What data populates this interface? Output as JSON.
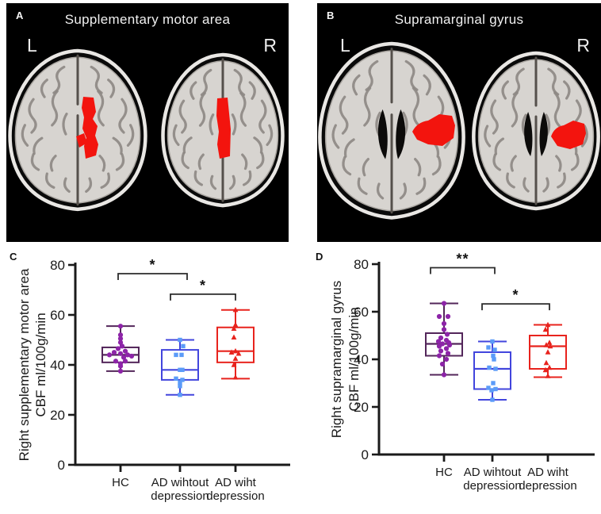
{
  "figure": {
    "panel_a": {
      "letter": "A",
      "title": "Supplementary motor area",
      "left_label": "L",
      "right_label": "R"
    },
    "panel_b": {
      "letter": "B",
      "title": "Supramarginal gyrus",
      "left_label": "L",
      "right_label": "R"
    },
    "panel_c": {
      "letter": "C"
    },
    "panel_d": {
      "letter": "D"
    }
  },
  "colors": {
    "panel_background": "#000000",
    "roi_highlight": "#f3140e",
    "hc_box": "#53265a",
    "hc_point": "#8d24a8",
    "ad_without_box": "#4245dd",
    "ad_without_point": "#5b9bf8",
    "ad_with_box": "#e8231d",
    "ad_with_point": "#e8231d",
    "axis": "#1a1a1a",
    "bracket": "#2b2b2b"
  },
  "chart_data": [
    {
      "panel": "C",
      "type": "box",
      "ylabel_lines": [
        "Right supplementary motor area",
        "CBF ml/100g/min"
      ],
      "ylim": [
        0,
        80
      ],
      "yticks": [
        0,
        20,
        40,
        60,
        80
      ],
      "grid": false,
      "categories": [
        "HC",
        "AD wihtout\ndepression",
        "AD wiht\ndepression"
      ],
      "series": [
        {
          "name": "HC",
          "marker": "circle",
          "box_color": "#53265a",
          "point_color": "#8d24a8",
          "whisker_low": 37.5,
          "q1": 41,
          "median": 44,
          "q3": 47,
          "whisker_high": 55.5,
          "points": [
            [
              55.5,
              0
            ],
            [
              52,
              0
            ],
            [
              50.5,
              0
            ],
            [
              49,
              0
            ],
            [
              47.5,
              2
            ],
            [
              46.5,
              -3
            ],
            [
              45.5,
              6
            ],
            [
              45,
              -8
            ],
            [
              44.5,
              0
            ],
            [
              44,
              9
            ],
            [
              44,
              -14
            ],
            [
              43.5,
              14
            ],
            [
              43,
              4
            ],
            [
              41.5,
              -6
            ],
            [
              41.5,
              6
            ],
            [
              40.5,
              0
            ],
            [
              39.5,
              0
            ],
            [
              37.5,
              0
            ]
          ]
        },
        {
          "name": "AD wihtout depression",
          "marker": "square",
          "box_color": "#4245dd",
          "point_color": "#5b9bf8",
          "whisker_low": 28,
          "q1": 34,
          "median": 38,
          "q3": 46,
          "whisker_high": 50,
          "points": [
            [
              50,
              0
            ],
            [
              47.5,
              4
            ],
            [
              44,
              -5
            ],
            [
              44,
              2
            ],
            [
              38,
              0
            ],
            [
              38,
              3
            ],
            [
              34.5,
              -5
            ],
            [
              34,
              3
            ],
            [
              33,
              0
            ],
            [
              31.5,
              0
            ],
            [
              28,
              0
            ]
          ]
        },
        {
          "name": "AD wiht depression",
          "marker": "triangle",
          "box_color": "#e8231d",
          "point_color": "#e8231d",
          "whisker_low": 34.5,
          "q1": 41,
          "median": 45.5,
          "q3": 55,
          "whisker_high": 62,
          "points": [
            [
              62,
              0
            ],
            [
              56,
              0
            ],
            [
              54.5,
              -2
            ],
            [
              51,
              -2
            ],
            [
              45.5,
              0
            ],
            [
              45,
              -5
            ],
            [
              44.5,
              4
            ],
            [
              42.5,
              0
            ],
            [
              40,
              -2
            ],
            [
              35,
              0
            ]
          ]
        }
      ],
      "significance": [
        {
          "from": 0,
          "to": 1,
          "label": "*",
          "y": 76.5,
          "shift1": -3,
          "shift2": 9
        },
        {
          "from": 1,
          "to": 2,
          "label": "*",
          "y": 68.3,
          "shift1": -12,
          "shift2": 0
        }
      ]
    },
    {
      "panel": "D",
      "type": "box",
      "ylabel_lines": [
        "Right supramarginal gyrus",
        "CBF ml/100g/min"
      ],
      "ylim": [
        0,
        80
      ],
      "yticks": [
        0,
        20,
        40,
        60,
        80
      ],
      "grid": false,
      "categories": [
        "HC",
        "AD wihtout\ndepression",
        "AD wiht\ndepression"
      ],
      "series": [
        {
          "name": "HC",
          "marker": "circle",
          "box_color": "#53265a",
          "point_color": "#8d24a8",
          "whisker_low": 33.5,
          "q1": 41.5,
          "median": 46.5,
          "q3": 51,
          "whisker_high": 63.5,
          "points": [
            [
              63.5,
              0
            ],
            [
              58,
              -6
            ],
            [
              58,
              5
            ],
            [
              55,
              0
            ],
            [
              52.5,
              0
            ],
            [
              50.5,
              4
            ],
            [
              49,
              -4
            ],
            [
              48,
              3
            ],
            [
              47.5,
              -7
            ],
            [
              47,
              6
            ],
            [
              46.5,
              -2
            ],
            [
              46,
              7
            ],
            [
              45.5,
              -6
            ],
            [
              44.5,
              3
            ],
            [
              43.5,
              -4
            ],
            [
              42.5,
              5
            ],
            [
              41.5,
              -6
            ],
            [
              40,
              3
            ],
            [
              38,
              -2
            ],
            [
              33.5,
              0
            ]
          ]
        },
        {
          "name": "AD wihtout depression",
          "marker": "square",
          "box_color": "#4245dd",
          "point_color": "#5b9bf8",
          "whisker_low": 23,
          "q1": 27.5,
          "median": 36,
          "q3": 43,
          "whisker_high": 47.5,
          "points": [
            [
              47.5,
              0
            ],
            [
              45,
              -5
            ],
            [
              44,
              3
            ],
            [
              41.5,
              1
            ],
            [
              40,
              2
            ],
            [
              36.5,
              -4
            ],
            [
              36,
              4
            ],
            [
              30,
              1
            ],
            [
              28,
              -5
            ],
            [
              27.5,
              4
            ],
            [
              27,
              -1
            ],
            [
              23,
              0
            ]
          ]
        },
        {
          "name": "AD wiht depression",
          "marker": "triangle",
          "box_color": "#e8231d",
          "point_color": "#e8231d",
          "whisker_low": 32.5,
          "q1": 36,
          "median": 45.5,
          "q3": 50,
          "whisker_high": 54.5,
          "points": [
            [
              54.5,
              0
            ],
            [
              52.5,
              -3
            ],
            [
              47,
              2
            ],
            [
              46,
              -2
            ],
            [
              45.5,
              3
            ],
            [
              43,
              0
            ],
            [
              38.5,
              -2
            ],
            [
              36.5,
              2
            ],
            [
              35.5,
              -3
            ],
            [
              33,
              0
            ]
          ]
        }
      ],
      "significance": [
        {
          "from": 0,
          "to": 1,
          "label": "**",
          "y": 78.5,
          "shift1": -17,
          "shift2": 3
        },
        {
          "from": 1,
          "to": 2,
          "label": "*",
          "y": 63.3,
          "shift1": -13,
          "shift2": 2
        }
      ]
    }
  ]
}
